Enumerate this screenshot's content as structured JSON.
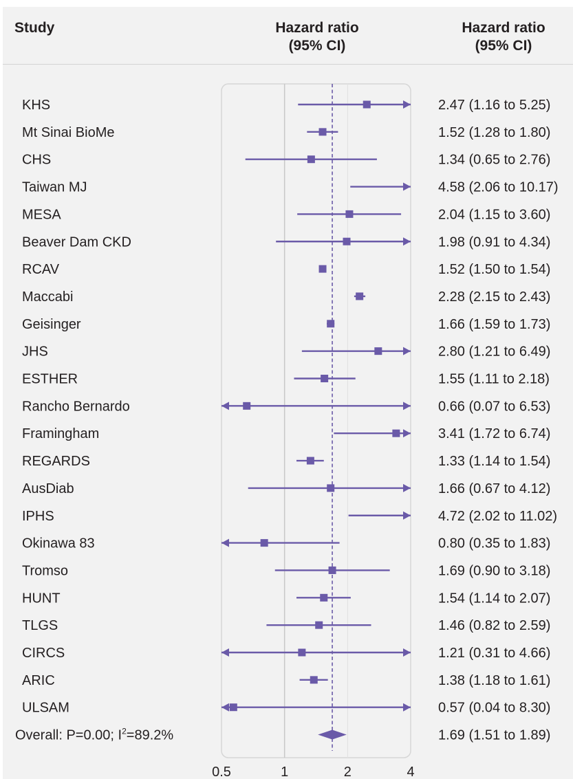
{
  "headers": {
    "study": "Study",
    "plot_line1": "Hazard ratio",
    "plot_line2": "(95% CI)",
    "text_line1": "Hazard ratio",
    "text_line2": "(95% CI)"
  },
  "colors": {
    "marker": "#6a5aa8",
    "panel": "#f2f2f2",
    "plot_area": "#f2f2f2",
    "grid": "#c8c8c8",
    "text": "#231f20"
  },
  "chart_data": {
    "type": "forest",
    "x_scale": "log",
    "xlim": [
      0.5,
      4
    ],
    "x_ticks": [
      {
        "value": 0.5,
        "label": "0.5"
      },
      {
        "value": 1,
        "label": "1"
      },
      {
        "value": 2,
        "label": "2"
      },
      {
        "value": 4,
        "label": "4"
      }
    ],
    "reference_line": 1,
    "overall_line": 1.69,
    "studies": [
      {
        "name": "KHS",
        "hr": 2.47,
        "lower": 1.16,
        "upper": 5.25,
        "ci_text": "2.47 (1.16 to 5.25)"
      },
      {
        "name": "Mt Sinai BioMe",
        "hr": 1.52,
        "lower": 1.28,
        "upper": 1.8,
        "ci_text": "1.52 (1.28 to 1.80)"
      },
      {
        "name": "CHS",
        "hr": 1.34,
        "lower": 0.65,
        "upper": 2.76,
        "ci_text": "1.34 (0.65 to 2.76)"
      },
      {
        "name": "Taiwan MJ",
        "hr": 4.58,
        "lower": 2.06,
        "upper": 10.17,
        "ci_text": "4.58 (2.06 to 10.17)"
      },
      {
        "name": "MESA",
        "hr": 2.04,
        "lower": 1.15,
        "upper": 3.6,
        "ci_text": "2.04 (1.15 to 3.60)"
      },
      {
        "name": "Beaver Dam CKD",
        "hr": 1.98,
        "lower": 0.91,
        "upper": 4.34,
        "ci_text": "1.98 (0.91 to 4.34)"
      },
      {
        "name": "RCAV",
        "hr": 1.52,
        "lower": 1.5,
        "upper": 1.54,
        "ci_text": "1.52 (1.50 to 1.54)"
      },
      {
        "name": "Maccabi",
        "hr": 2.28,
        "lower": 2.15,
        "upper": 2.43,
        "ci_text": "2.28 (2.15 to 2.43)"
      },
      {
        "name": "Geisinger",
        "hr": 1.66,
        "lower": 1.59,
        "upper": 1.73,
        "ci_text": "1.66 (1.59 to 1.73)"
      },
      {
        "name": "JHS",
        "hr": 2.8,
        "lower": 1.21,
        "upper": 6.49,
        "ci_text": "2.80 (1.21 to 6.49)"
      },
      {
        "name": "ESTHER",
        "hr": 1.55,
        "lower": 1.11,
        "upper": 2.18,
        "ci_text": "1.55 (1.11 to 2.18)"
      },
      {
        "name": "Rancho Bernardo",
        "hr": 0.66,
        "lower": 0.07,
        "upper": 6.53,
        "ci_text": "0.66 (0.07 to 6.53)"
      },
      {
        "name": "Framingham",
        "hr": 3.41,
        "lower": 1.72,
        "upper": 6.74,
        "ci_text": "3.41 (1.72 to 6.74)"
      },
      {
        "name": "REGARDS",
        "hr": 1.33,
        "lower": 1.14,
        "upper": 1.54,
        "ci_text": "1.33 (1.14 to 1.54)"
      },
      {
        "name": "AusDiab",
        "hr": 1.66,
        "lower": 0.67,
        "upper": 4.12,
        "ci_text": "1.66 (0.67 to 4.12)"
      },
      {
        "name": "IPHS",
        "hr": 4.72,
        "lower": 2.02,
        "upper": 11.02,
        "ci_text": "4.72 (2.02 to 11.02)"
      },
      {
        "name": "Okinawa 83",
        "hr": 0.8,
        "lower": 0.35,
        "upper": 1.83,
        "ci_text": "0.80 (0.35 to 1.83)"
      },
      {
        "name": "Tromso",
        "hr": 1.69,
        "lower": 0.9,
        "upper": 3.18,
        "ci_text": "1.69 (0.90 to 3.18)"
      },
      {
        "name": "HUNT",
        "hr": 1.54,
        "lower": 1.14,
        "upper": 2.07,
        "ci_text": "1.54 (1.14 to 2.07)"
      },
      {
        "name": "TLGS",
        "hr": 1.46,
        "lower": 0.82,
        "upper": 2.59,
        "ci_text": "1.46 (0.82 to 2.59)"
      },
      {
        "name": "CIRCS",
        "hr": 1.21,
        "lower": 0.31,
        "upper": 4.66,
        "ci_text": "1.21 (0.31 to 4.66)"
      },
      {
        "name": "ARIC",
        "hr": 1.38,
        "lower": 1.18,
        "upper": 1.61,
        "ci_text": "1.38 (1.18 to 1.61)"
      },
      {
        "name": "ULSAM",
        "hr": 0.57,
        "lower": 0.04,
        "upper": 8.3,
        "ci_text": "0.57 (0.04 to 8.30)"
      }
    ],
    "overall": {
      "label_prefix": "Overall: P=0.00; I",
      "label_sup": "2",
      "label_suffix": "=89.2%",
      "hr": 1.69,
      "lower": 1.51,
      "upper": 1.89,
      "ci_text": "1.69 (1.51 to 1.89)"
    }
  }
}
